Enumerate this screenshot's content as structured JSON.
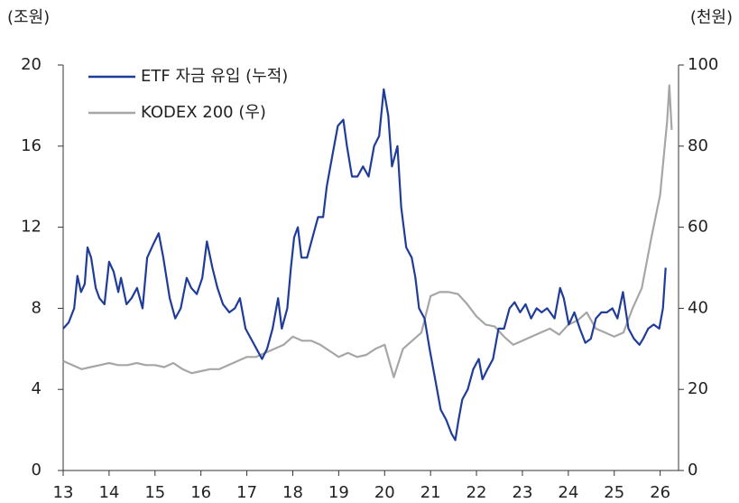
{
  "chart_data": {
    "type": "line",
    "y_label": "(조원)",
    "y2_label": "(천원)",
    "xlim": [
      13,
      26.4
    ],
    "xticks": [
      13,
      14,
      15,
      16,
      17,
      18,
      19,
      20,
      21,
      22,
      23,
      24,
      25,
      26
    ],
    "ylim": [
      0,
      20
    ],
    "yticks": [
      0,
      4,
      8,
      12,
      16,
      20
    ],
    "y2lim": [
      0,
      100
    ],
    "y2ticks": [
      0,
      20,
      40,
      60,
      80,
      100
    ],
    "legend": "upper left",
    "series": [
      {
        "name": "ETF 자금 유입 (누적)",
        "color": "#1f3c99",
        "x": [
          13.0,
          13.12,
          13.24,
          13.31,
          13.39,
          13.47,
          13.53,
          13.61,
          13.71,
          13.79,
          13.9,
          14.0,
          14.1,
          14.2,
          14.26,
          14.38,
          14.49,
          14.61,
          14.73,
          14.83,
          14.97,
          15.08,
          15.18,
          15.32,
          15.44,
          15.56,
          15.69,
          15.79,
          15.91,
          16.03,
          16.13,
          16.25,
          16.36,
          16.48,
          16.62,
          16.74,
          16.85,
          16.97,
          17.09,
          17.21,
          17.33,
          17.44,
          17.56,
          17.68,
          17.76,
          17.88,
          17.96,
          18.03,
          18.11,
          18.19,
          18.31,
          18.43,
          18.55,
          18.66,
          18.74,
          18.86,
          18.98,
          19.1,
          19.18,
          19.29,
          19.41,
          19.53,
          19.65,
          19.77,
          19.88,
          19.98,
          20.08,
          20.16,
          20.28,
          20.36,
          20.47,
          20.59,
          20.67,
          20.75,
          20.87,
          20.98,
          21.1,
          21.22,
          21.34,
          21.46,
          21.54,
          21.61,
          21.69,
          21.81,
          21.93,
          22.05,
          22.13,
          22.24,
          22.36,
          22.48,
          22.6,
          22.72,
          22.83,
          22.95,
          23.07,
          23.19,
          23.31,
          23.42,
          23.54,
          23.7,
          23.82,
          23.9,
          24.01,
          24.13,
          24.25,
          24.37,
          24.49,
          24.6,
          24.72,
          24.84,
          24.96,
          25.07,
          25.19,
          25.31,
          25.43,
          25.55,
          25.63,
          25.74,
          25.86,
          25.98,
          26.06,
          26.12
        ],
        "values": [
          7.0,
          7.3,
          8.0,
          9.6,
          8.8,
          9.2,
          11.0,
          10.5,
          9.0,
          8.5,
          8.2,
          10.3,
          9.8,
          8.8,
          9.5,
          8.2,
          8.5,
          9.0,
          8.0,
          10.5,
          11.2,
          11.7,
          10.5,
          8.5,
          7.5,
          8.0,
          9.5,
          9.0,
          8.7,
          9.5,
          11.3,
          10.0,
          9.0,
          8.2,
          7.8,
          8.0,
          8.5,
          7.0,
          6.5,
          6.0,
          5.5,
          6.0,
          7.0,
          8.5,
          7.0,
          8.0,
          10.0,
          11.5,
          12.0,
          10.5,
          10.5,
          11.5,
          12.5,
          12.5,
          14.0,
          15.5,
          17.0,
          17.3,
          16.0,
          14.5,
          14.5,
          15.0,
          14.5,
          16.0,
          16.5,
          18.8,
          17.5,
          15.0,
          16.0,
          13.0,
          11.0,
          10.5,
          9.5,
          8.0,
          7.5,
          6.0,
          4.5,
          3.0,
          2.5,
          1.8,
          1.5,
          2.5,
          3.5,
          4.0,
          5.0,
          5.5,
          4.5,
          5.0,
          5.5,
          7.0,
          7.0,
          8.0,
          8.3,
          7.8,
          8.2,
          7.5,
          8.0,
          7.8,
          8.0,
          7.5,
          9.0,
          8.5,
          7.2,
          7.8,
          7.0,
          6.3,
          6.5,
          7.5,
          7.8,
          7.8,
          8.0,
          7.5,
          8.8,
          7.0,
          6.5,
          6.2,
          6.5,
          7.0,
          7.2,
          7.0,
          8.0,
          10.0
        ]
      },
      {
        "name": "KODEX 200 (우)",
        "color": "#a6a6a6",
        "axis": "y2",
        "x": [
          13.0,
          13.2,
          13.4,
          13.6,
          13.8,
          14.0,
          14.2,
          14.4,
          14.6,
          14.8,
          15.0,
          15.2,
          15.4,
          15.6,
          15.8,
          16.0,
          16.2,
          16.4,
          16.6,
          16.8,
          17.0,
          17.2,
          17.4,
          17.6,
          17.8,
          18.0,
          18.2,
          18.4,
          18.6,
          18.8,
          19.0,
          19.2,
          19.4,
          19.6,
          19.8,
          20.0,
          20.2,
          20.4,
          20.6,
          20.8,
          21.0,
          21.2,
          21.4,
          21.6,
          21.8,
          22.0,
          22.2,
          22.4,
          22.6,
          22.8,
          23.0,
          23.2,
          23.4,
          23.6,
          23.8,
          24.0,
          24.2,
          24.4,
          24.6,
          24.8,
          25.0,
          25.2,
          25.4,
          25.6,
          25.8,
          26.0,
          26.1,
          26.15,
          26.2,
          26.25
        ],
        "values": [
          27,
          26,
          25,
          25.5,
          26,
          26.5,
          26,
          26,
          26.5,
          26,
          26,
          25.5,
          26.5,
          25,
          24,
          24.5,
          25,
          25,
          26,
          27,
          28,
          28,
          29,
          30,
          31,
          33,
          32,
          32,
          31,
          29.5,
          28,
          29,
          28,
          28.5,
          30,
          31,
          23,
          30,
          32,
          34,
          43,
          44,
          44,
          43.5,
          41,
          38,
          36,
          35.5,
          33,
          31,
          32,
          33,
          34,
          35,
          33.5,
          36,
          37,
          39,
          35,
          34,
          33,
          34,
          40,
          45,
          57,
          68,
          80,
          86,
          95,
          84
        ]
      }
    ]
  }
}
